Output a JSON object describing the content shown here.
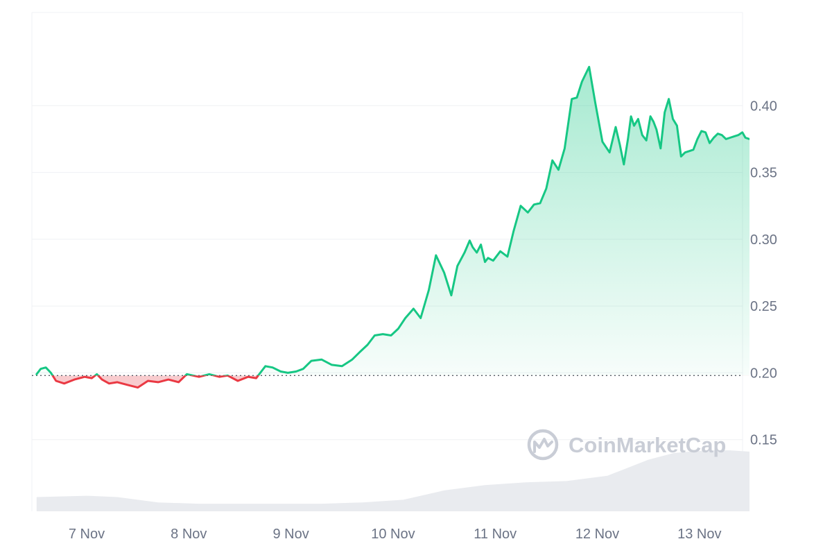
{
  "watermark": {
    "text": "CoinMarketCap",
    "icon": "coinmarketcap-logo-icon"
  },
  "colors": {
    "up_line": "#16c784",
    "down_line": "#ea3943",
    "up_fill": "#16c784",
    "down_fill": "#f2a0a6",
    "grid": "#eff1f4",
    "axis_text": "#6b7385",
    "baseline": "#555b66",
    "volume": "#e9ebef",
    "watermark": "#c9cdd6"
  },
  "chart_data": {
    "type": "area",
    "x_ticks": [
      "7 Nov",
      "8 Nov",
      "9 Nov",
      "10 Nov",
      "11 Nov",
      "12 Nov",
      "13 Nov"
    ],
    "y_ticks": [
      "0.15",
      "0.20",
      "0.25",
      "0.30",
      "0.35",
      "0.40"
    ],
    "ylim": [
      0.1,
      0.45
    ],
    "xlim": [
      -0.49,
      6.49
    ],
    "baseline": 0.198,
    "grid": "horizontal",
    "series": [
      {
        "type": "line",
        "x": [
          -0.49,
          -0.45,
          -0.4,
          -0.35,
          -0.3,
          -0.22,
          -0.12,
          -0.02,
          0.05,
          0.1,
          0.15,
          0.22,
          0.3,
          0.4,
          0.5,
          0.6,
          0.7,
          0.8,
          0.9,
          0.98,
          1.1,
          1.2,
          1.3,
          1.38,
          1.48,
          1.58,
          1.66,
          1.75,
          1.82,
          1.9,
          1.97,
          2.05,
          2.12,
          2.2,
          2.3,
          2.4,
          2.5,
          2.6,
          2.68,
          2.75,
          2.82,
          2.9,
          2.98,
          3.05,
          3.12,
          3.2,
          3.27,
          3.35,
          3.42,
          3.5,
          3.57,
          3.63,
          3.7,
          3.75,
          3.78,
          3.82,
          3.86,
          3.9,
          3.93,
          3.98,
          4.05,
          4.12,
          4.18,
          4.25,
          4.32,
          4.38,
          4.44,
          4.5,
          4.56,
          4.62,
          4.68,
          4.75,
          4.8,
          4.85,
          4.92,
          4.98,
          5.05,
          5.12,
          5.18,
          5.22,
          5.26,
          5.3,
          5.33,
          5.36,
          5.4,
          5.44,
          5.48,
          5.52,
          5.55,
          5.58,
          5.62,
          5.66,
          5.7,
          5.74,
          5.78,
          5.82,
          5.86,
          5.9,
          5.94,
          5.98,
          6.02,
          6.06,
          6.1,
          6.14,
          6.18,
          6.22,
          6.26,
          6.3,
          6.34,
          6.38,
          6.42,
          6.45,
          6.49
        ],
        "y": [
          0.199,
          0.203,
          0.204,
          0.2,
          0.194,
          0.192,
          0.195,
          0.197,
          0.196,
          0.199,
          0.195,
          0.192,
          0.193,
          0.191,
          0.189,
          0.194,
          0.193,
          0.195,
          0.193,
          0.199,
          0.197,
          0.199,
          0.197,
          0.198,
          0.194,
          0.197,
          0.196,
          0.205,
          0.204,
          0.201,
          0.2,
          0.201,
          0.203,
          0.209,
          0.21,
          0.206,
          0.205,
          0.21,
          0.216,
          0.221,
          0.228,
          0.229,
          0.228,
          0.233,
          0.241,
          0.248,
          0.241,
          0.262,
          0.288,
          0.275,
          0.258,
          0.28,
          0.29,
          0.299,
          0.294,
          0.29,
          0.296,
          0.283,
          0.286,
          0.284,
          0.291,
          0.287,
          0.306,
          0.325,
          0.32,
          0.326,
          0.327,
          0.338,
          0.359,
          0.352,
          0.368,
          0.405,
          0.406,
          0.418,
          0.429,
          0.402,
          0.373,
          0.365,
          0.384,
          0.371,
          0.356,
          0.375,
          0.392,
          0.385,
          0.39,
          0.378,
          0.374,
          0.392,
          0.388,
          0.382,
          0.368,
          0.395,
          0.405,
          0.39,
          0.385,
          0.362,
          0.365,
          0.366,
          0.367,
          0.375,
          0.381,
          0.38,
          0.372,
          0.376,
          0.379,
          0.378,
          0.375,
          0.376,
          0.377,
          0.378,
          0.38,
          0.376,
          0.375
        ]
      },
      {
        "type": "area",
        "x": [
          -0.49,
          0.0,
          0.3,
          0.7,
          1.1,
          1.5,
          1.9,
          2.3,
          2.7,
          3.1,
          3.5,
          3.9,
          4.3,
          4.7,
          5.1,
          5.5,
          5.75,
          5.9,
          6.1,
          6.3,
          6.49
        ],
        "y": [
          0.107,
          0.108,
          0.107,
          0.103,
          0.102,
          0.102,
          0.102,
          0.102,
          0.103,
          0.105,
          0.112,
          0.116,
          0.118,
          0.119,
          0.123,
          0.135,
          0.14,
          0.141,
          0.142,
          0.142,
          0.141
        ]
      }
    ]
  }
}
